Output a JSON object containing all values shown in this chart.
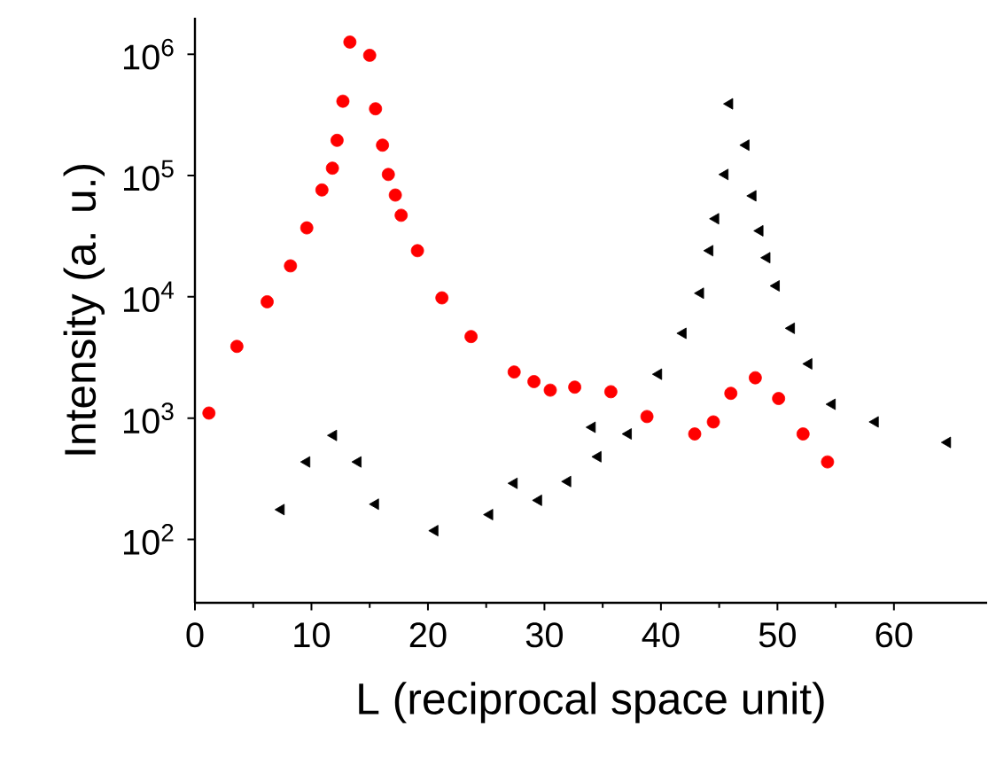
{
  "chart_data": {
    "type": "scatter",
    "xlabel": "L (reciprocal space unit)",
    "ylabel": "Intensity (a. u.)",
    "log": "y",
    "xlim": [
      0,
      68
    ],
    "ylim": [
      30,
      2000000
    ],
    "xticks": [
      0,
      10,
      20,
      30,
      40,
      50,
      60
    ],
    "yticks": [
      {
        "value": 100,
        "label": "10$^{2}$"
      },
      {
        "value": 1000,
        "label": "10$^{3}$"
      },
      {
        "value": 10000,
        "label": "10$^{4}$"
      },
      {
        "value": 100000,
        "label": "10$^{5}$"
      },
      {
        "value": 1000000,
        "label": "10$^{6}$"
      }
    ],
    "grid": false,
    "series": [
      {
        "color": "#ff0000",
        "marker": "circle",
        "x": [
          1.2,
          3.6,
          6.2,
          8.2,
          9.6,
          10.9,
          11.8,
          12.2,
          12.7,
          13.3,
          15.0,
          15.5,
          16.1,
          16.6,
          17.2,
          17.7,
          19.1,
          21.2,
          23.7,
          27.4,
          29.1,
          30.5,
          32.6,
          35.7,
          38.8,
          42.9,
          44.5,
          46.0,
          48.1,
          50.1,
          52.2,
          54.3
        ],
        "values": [
          1100,
          3900,
          9100,
          18000,
          37000,
          76000,
          115000,
          195000,
          410000,
          1260000,
          980000,
          355000,
          178000,
          102000,
          69000,
          47000,
          24000,
          9800,
          4700,
          2400,
          2000,
          1700,
          1800,
          1650,
          1030,
          740,
          930,
          1600,
          2150,
          1450,
          740,
          435
        ]
      },
      {
        "color": "#000000",
        "marker": "triangle",
        "x": [
          7.4,
          9.6,
          11.9,
          14.0,
          15.5,
          20.6,
          25.3,
          27.4,
          29.5,
          32.0,
          34.1,
          34.6,
          37.2,
          39.8,
          41.9,
          43.4,
          44.2,
          44.7,
          45.5,
          45.9,
          47.3,
          47.9,
          48.5,
          49.1,
          49.9,
          51.2,
          52.7,
          54.7,
          58.4,
          64.6
        ],
        "values": [
          176,
          435,
          720,
          435,
          195,
          118,
          160,
          290,
          210,
          300,
          840,
          480,
          740,
          2300,
          5000,
          10700,
          24000,
          44000,
          102000,
          390000,
          178000,
          68000,
          35000,
          21000,
          12300,
          5500,
          2800,
          1300,
          930,
          630
        ]
      }
    ]
  }
}
